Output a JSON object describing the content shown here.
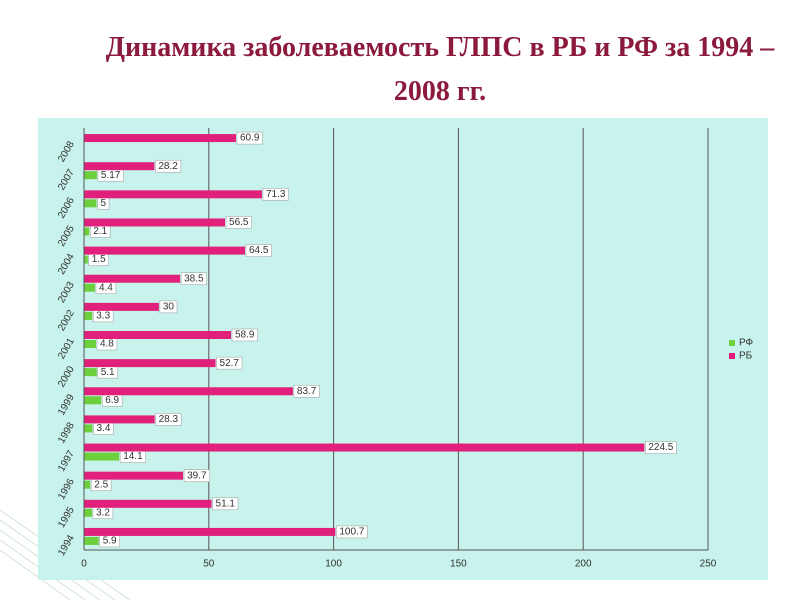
{
  "chart_data": {
    "type": "hbar",
    "title": "Динамика заболеваемость ГЛПС в РБ и РФ за 1994 – 2008 гг.",
    "categories": [
      "1994",
      "1995",
      "1996",
      "1997",
      "1998",
      "1999",
      "2000",
      "2001",
      "2002",
      "2003",
      "2004",
      "2005",
      "2006",
      "2007",
      "2008"
    ],
    "series": [
      {
        "name": "РФ",
        "color": "#6ccf3c",
        "values": [
          5.9,
          3.2,
          2.5,
          14.1,
          3.4,
          6.9,
          5.1,
          4.8,
          3.3,
          4.4,
          1.5,
          2.1,
          5,
          5.17,
          null
        ]
      },
      {
        "name": "РБ",
        "color": "#e0207a",
        "values": [
          100.7,
          51.1,
          39.7,
          224.5,
          28.3,
          83.7,
          52.7,
          58.9,
          30,
          38.5,
          64.5,
          56.5,
          71.3,
          28.2,
          60.9
        ]
      }
    ],
    "xlim": [
      0,
      250
    ],
    "xticks": [
      0,
      50,
      100,
      150,
      200,
      250
    ],
    "grid": true,
    "legend": "right"
  }
}
